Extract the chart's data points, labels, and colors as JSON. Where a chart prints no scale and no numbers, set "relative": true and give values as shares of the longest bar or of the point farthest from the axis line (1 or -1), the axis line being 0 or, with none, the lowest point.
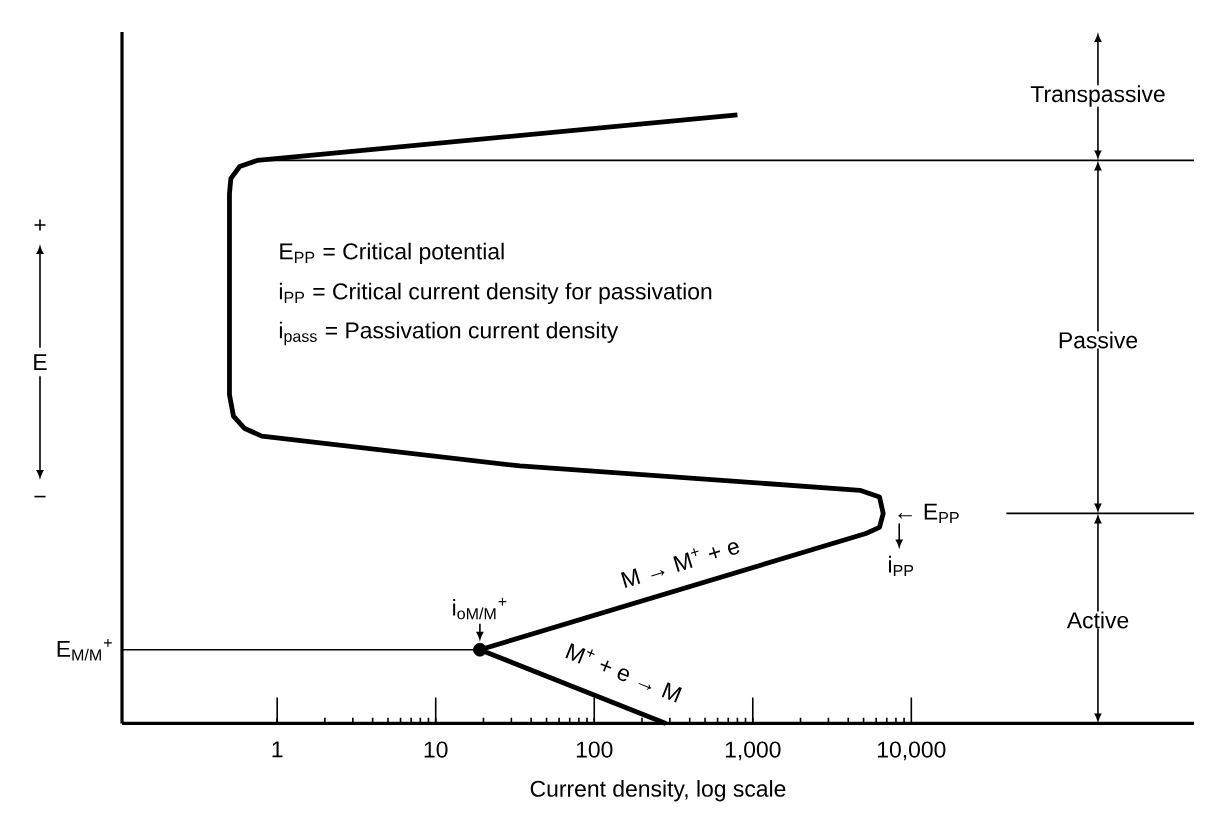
{
  "chart_data": {
    "type": "line",
    "relative": true,
    "log": "x",
    "xlabel": "Current density, log scale",
    "ylabel": "E",
    "tick_labels": "x",
    "xlim": [
      0.105,
      607000
    ],
    "xticks": [
      1,
      10,
      100,
      {
        "value": 1000,
        "label": "1,000"
      },
      {
        "value": 10000,
        "label": "10,000"
      }
    ],
    "series": [
      {
        "color": "#000000",
        "x": [
          800,
          0.75,
          0.58,
          0.51,
          0.5,
          0.5,
          0.53,
          0.62,
          0.8,
          34,
          4740,
          6300,
          6650,
          6300,
          5170,
          19,
          283
        ],
        "values": [
          1.0,
          0.925,
          0.915,
          0.895,
          0.87,
          0.54,
          0.505,
          0.485,
          0.472,
          0.423,
          0.383,
          0.372,
          0.345,
          0.322,
          0.312,
          0.121,
          0
        ]
      },
      {
        "color": "#000000",
        "x": [
          0.71,
          607000
        ],
        "values": [
          0.925,
          0.925
        ]
      },
      {
        "color": "#000000",
        "x": [
          39800,
          607000
        ],
        "values": [
          0.345,
          0.345
        ]
      },
      {
        "color": "#000000",
        "x": [
          0.105,
          19
        ],
        "values": [
          0.121,
          0.121
        ]
      },
      {
        "type": "scatter",
        "color": "#000000",
        "x": [
          19
        ],
        "values": [
          0.121
        ]
      }
    ],
    "annotations": [
      "E$_{PP}$ = Critical potential",
      "i$_{PP}$ = Critical current density for passivation",
      "i$_{pass}$ = Passivation current density",
      {
        "text": "i$_{oM/M}$$^{+}$",
        "x": 19,
        "y": 0.121
      },
      {
        "text": "E$_{M/M}$$^{+}$",
        "x": 0.105,
        "y": 0.121
      },
      {
        "text": "← E$_{PP}$",
        "x": 6650,
        "y": 0.345
      },
      {
        "text": "i$_{PP}$",
        "x": 6650,
        "y": 0.345
      },
      "M → M$^{+}$ + e",
      "M$^{+}$ + e → M",
      "+",
      "−",
      "Transpassive",
      "Passive",
      "Active"
    ]
  }
}
